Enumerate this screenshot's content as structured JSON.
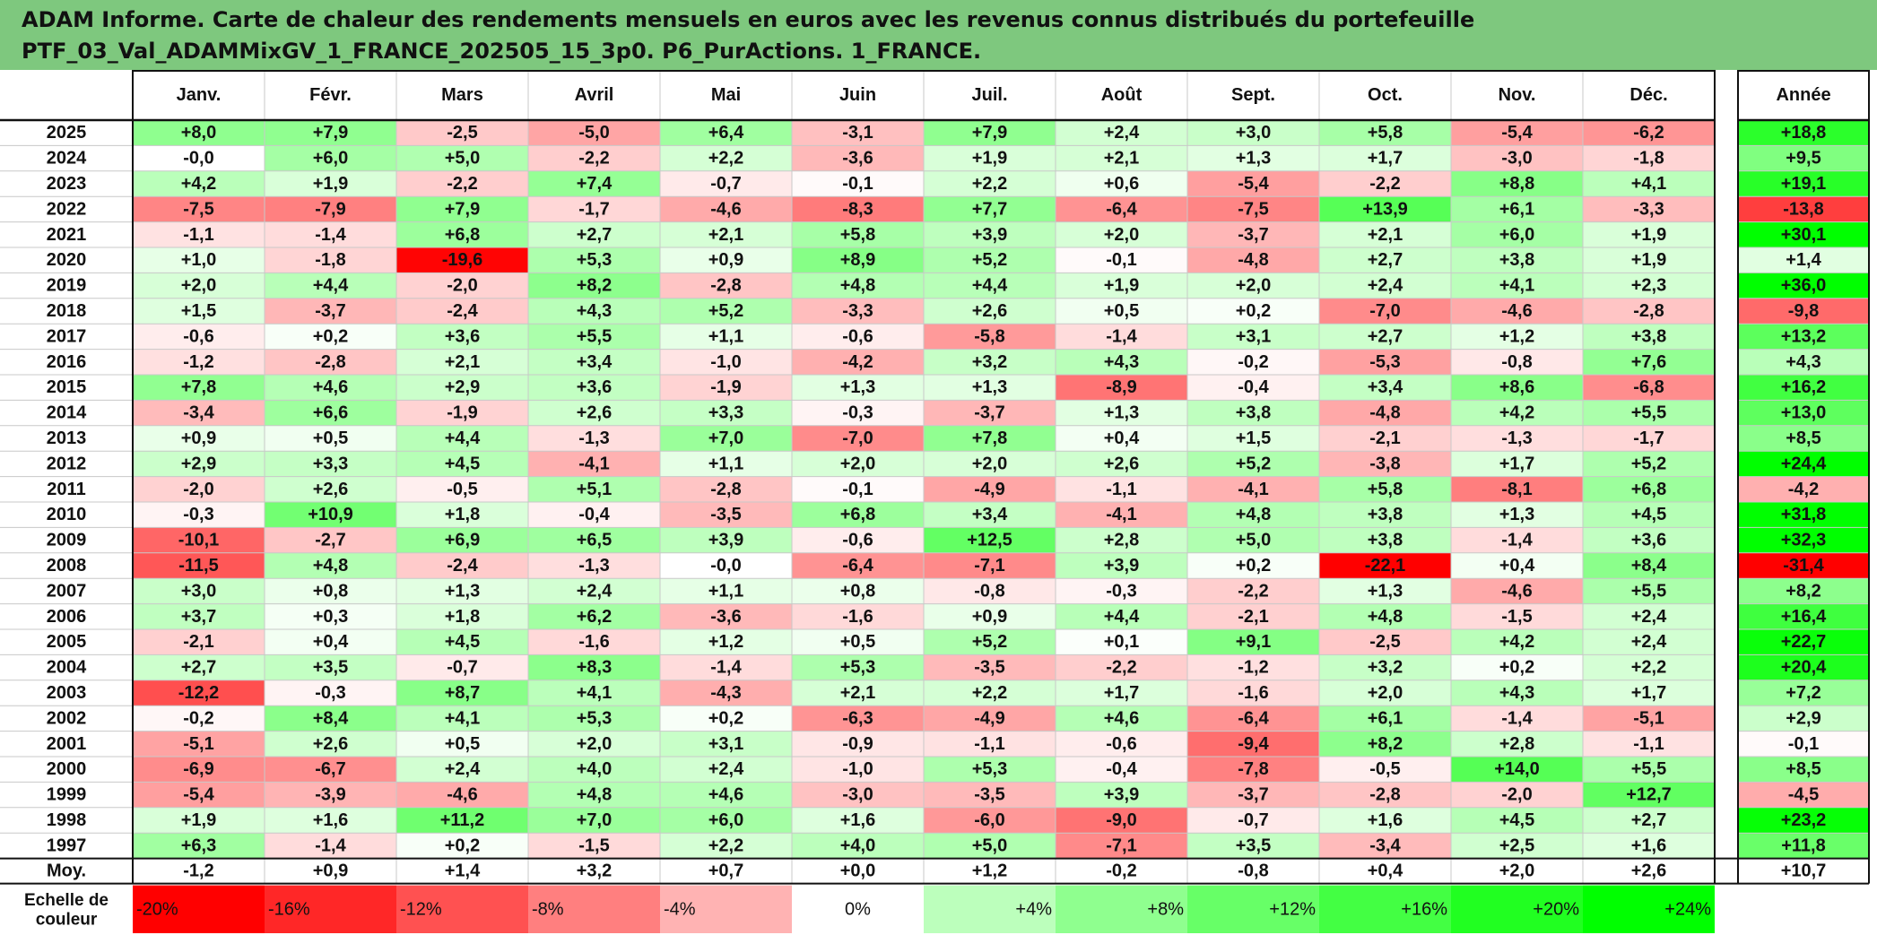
{
  "title_line1": "ADAM Informe. Carte de chaleur des rendements mensuels en euros avec les revenus connus distribués du portefeuille",
  "title_line2": "PTF_03_Val_ADAMMixGV_1_FRANCE_202505_15_3p0. P6_PurActions. 1_FRANCE.",
  "chart_data": {
    "type": "heatmap",
    "columns": [
      "Janv.",
      "Févr.",
      "Mars",
      "Avril",
      "Mai",
      "Juin",
      "Juil.",
      "Août",
      "Sept.",
      "Oct.",
      "Nov.",
      "Déc."
    ],
    "annual_header": "Année",
    "rows": [
      {
        "year": "2025",
        "values": [
          8.0,
          7.9,
          -2.5,
          -5.0,
          6.4,
          -3.1,
          7.9,
          2.4,
          3.0,
          5.8,
          -5.4,
          -6.2
        ],
        "annual": 18.8
      },
      {
        "year": "2024",
        "values": [
          -0.0,
          6.0,
          5.0,
          -2.2,
          2.2,
          -3.6,
          1.9,
          2.1,
          1.3,
          1.7,
          -3.0,
          -1.8
        ],
        "annual": 9.5
      },
      {
        "year": "2023",
        "values": [
          4.2,
          1.9,
          -2.2,
          7.4,
          -0.7,
          -0.1,
          2.2,
          0.6,
          -5.4,
          -2.2,
          8.8,
          4.1
        ],
        "annual": 19.1
      },
      {
        "year": "2022",
        "values": [
          -7.5,
          -7.9,
          7.9,
          -1.7,
          -4.6,
          -8.3,
          7.7,
          -6.4,
          -7.5,
          13.9,
          6.1,
          -3.3
        ],
        "annual": -13.8
      },
      {
        "year": "2021",
        "values": [
          -1.1,
          -1.4,
          6.8,
          2.7,
          2.1,
          5.8,
          3.9,
          2.0,
          -3.7,
          2.1,
          6.0,
          1.9
        ],
        "annual": 30.1
      },
      {
        "year": "2020",
        "values": [
          1.0,
          -1.8,
          -19.6,
          5.3,
          0.9,
          8.9,
          5.2,
          -0.1,
          -4.8,
          2.7,
          3.8,
          1.9
        ],
        "annual": 1.4
      },
      {
        "year": "2019",
        "values": [
          2.0,
          4.4,
          -2.0,
          8.2,
          -2.8,
          4.8,
          4.4,
          1.9,
          2.0,
          2.4,
          4.1,
          2.3
        ],
        "annual": 36.0
      },
      {
        "year": "2018",
        "values": [
          1.5,
          -3.7,
          -2.4,
          4.3,
          5.2,
          -3.3,
          2.6,
          0.5,
          0.2,
          -7.0,
          -4.6,
          -2.8
        ],
        "annual": -9.8
      },
      {
        "year": "2017",
        "values": [
          -0.6,
          0.2,
          3.6,
          5.5,
          1.1,
          -0.6,
          -5.8,
          -1.4,
          3.1,
          2.7,
          1.2,
          3.8
        ],
        "annual": 13.2
      },
      {
        "year": "2016",
        "values": [
          -1.2,
          -2.8,
          2.1,
          3.4,
          -1.0,
          -4.2,
          3.2,
          4.3,
          -0.2,
          -5.3,
          -0.8,
          7.6
        ],
        "annual": 4.3
      },
      {
        "year": "2015",
        "values": [
          7.8,
          4.6,
          2.9,
          3.6,
          -1.9,
          1.3,
          1.3,
          -8.9,
          -0.4,
          3.4,
          8.6,
          -6.8
        ],
        "annual": 16.2
      },
      {
        "year": "2014",
        "values": [
          -3.4,
          6.6,
          -1.9,
          2.6,
          3.3,
          -0.3,
          -3.7,
          1.3,
          3.8,
          -4.8,
          4.2,
          5.5
        ],
        "annual": 13.0
      },
      {
        "year": "2013",
        "values": [
          0.9,
          0.5,
          4.4,
          -1.3,
          7.0,
          -7.0,
          7.8,
          0.4,
          1.5,
          -2.1,
          -1.3,
          -1.7
        ],
        "annual": 8.5
      },
      {
        "year": "2012",
        "values": [
          2.9,
          3.3,
          4.5,
          -4.1,
          1.1,
          2.0,
          2.0,
          2.6,
          5.2,
          -3.8,
          1.7,
          5.2
        ],
        "annual": 24.4
      },
      {
        "year": "2011",
        "values": [
          -2.0,
          2.6,
          -0.5,
          5.1,
          -2.8,
          -0.1,
          -4.9,
          -1.1,
          -4.1,
          5.8,
          -8.1,
          6.8
        ],
        "annual": -4.2
      },
      {
        "year": "2010",
        "values": [
          -0.3,
          10.9,
          1.8,
          -0.4,
          -3.5,
          6.8,
          3.4,
          -4.1,
          4.8,
          3.8,
          1.3,
          4.5
        ],
        "annual": 31.8
      },
      {
        "year": "2009",
        "values": [
          -10.1,
          -2.7,
          6.9,
          6.5,
          3.9,
          -0.6,
          12.5,
          2.8,
          5.0,
          3.8,
          -1.4,
          3.6
        ],
        "annual": 32.3
      },
      {
        "year": "2008",
        "values": [
          -11.5,
          4.8,
          -2.4,
          -1.3,
          -0.0,
          -6.4,
          -7.1,
          3.9,
          0.2,
          -22.1,
          0.4,
          8.4
        ],
        "annual": -31.4
      },
      {
        "year": "2007",
        "values": [
          3.0,
          0.8,
          1.3,
          2.4,
          1.1,
          0.8,
          -0.8,
          -0.3,
          -2.2,
          1.3,
          -4.6,
          5.5
        ],
        "annual": 8.2
      },
      {
        "year": "2006",
        "values": [
          3.7,
          0.3,
          1.8,
          6.2,
          -3.6,
          -1.6,
          0.9,
          4.4,
          -2.1,
          4.8,
          -1.5,
          2.4
        ],
        "annual": 16.4
      },
      {
        "year": "2005",
        "values": [
          -2.1,
          0.4,
          4.5,
          -1.6,
          1.2,
          0.5,
          5.2,
          0.1,
          9.1,
          -2.5,
          4.2,
          2.4
        ],
        "annual": 22.7
      },
      {
        "year": "2004",
        "values": [
          2.7,
          3.5,
          -0.7,
          8.3,
          -1.4,
          5.3,
          -3.5,
          -2.2,
          -1.2,
          3.2,
          0.2,
          2.2
        ],
        "annual": 20.4
      },
      {
        "year": "2003",
        "values": [
          -12.2,
          -0.3,
          8.7,
          4.1,
          -4.3,
          2.1,
          2.2,
          1.7,
          -1.6,
          2.0,
          4.3,
          1.7
        ],
        "annual": 7.2
      },
      {
        "year": "2002",
        "values": [
          -0.2,
          8.4,
          4.1,
          5.3,
          0.2,
          -6.3,
          -4.9,
          4.6,
          -6.4,
          6.1,
          -1.4,
          -5.1
        ],
        "annual": 2.9
      },
      {
        "year": "2001",
        "values": [
          -5.1,
          2.6,
          0.5,
          2.0,
          3.1,
          -0.9,
          -1.1,
          -0.6,
          -9.4,
          8.2,
          2.8,
          -1.1
        ],
        "annual": -0.1
      },
      {
        "year": "2000",
        "values": [
          -6.9,
          -6.7,
          2.4,
          4.0,
          2.4,
          -1.0,
          5.3,
          -0.4,
          -7.8,
          -0.5,
          14.0,
          5.5
        ],
        "annual": 8.5
      },
      {
        "year": "1999",
        "values": [
          -5.4,
          -3.9,
          -4.6,
          4.8,
          4.6,
          -3.0,
          -3.5,
          3.9,
          -3.7,
          -2.8,
          -2.0,
          12.7
        ],
        "annual": -4.5
      },
      {
        "year": "1998",
        "values": [
          1.9,
          1.6,
          11.2,
          7.0,
          6.0,
          1.6,
          -6.0,
          -9.0,
          -0.7,
          1.6,
          4.5,
          2.7
        ],
        "annual": 23.2
      },
      {
        "year": "1997",
        "values": [
          6.3,
          -1.4,
          0.2,
          -1.5,
          2.2,
          4.0,
          5.0,
          -7.1,
          3.5,
          -3.4,
          2.5,
          1.6
        ],
        "annual": 11.8
      }
    ],
    "average": {
      "label": "Moy.",
      "values": [
        -1.2,
        0.9,
        1.4,
        3.2,
        0.7,
        0.0,
        1.2,
        -0.2,
        -0.8,
        0.4,
        2.0,
        2.6
      ],
      "annual": 10.7
    },
    "color_scale": {
      "label_line1": "Echelle de",
      "label_line2": "couleur",
      "stops": [
        {
          "label": "-20%",
          "value": -20
        },
        {
          "label": "-16%",
          "value": -16
        },
        {
          "label": "-12%",
          "value": -12
        },
        {
          "label": "-8%",
          "value": -8
        },
        {
          "label": "-4%",
          "value": -4
        },
        {
          "label": "0%",
          "value": 0
        },
        {
          "label": "+4%",
          "value": 4
        },
        {
          "label": "+8%",
          "value": 8
        },
        {
          "label": "+12%",
          "value": 12
        },
        {
          "label": "+16%",
          "value": 16
        },
        {
          "label": "+20%",
          "value": 20
        },
        {
          "label": "+24%",
          "value": 24
        }
      ]
    },
    "colors": {
      "negative_max": "#ff0000",
      "positive_max": "#00ff00",
      "neutral": "#ffffff",
      "header_bg": "#7ec87e"
    }
  }
}
